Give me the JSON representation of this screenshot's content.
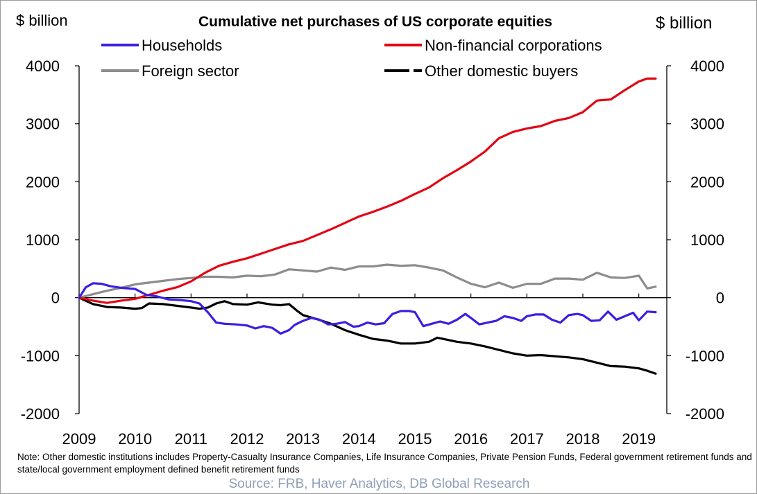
{
  "chart_data": {
    "type": "line",
    "title": "Cumulative net purchases of US corporate equities",
    "ylabel_left": "$ billion",
    "ylabel_right": "$ billion",
    "ylim": [
      -2000,
      4000
    ],
    "yticks": [
      4000,
      3000,
      2000,
      1000,
      0,
      -1000,
      -2000
    ],
    "xlim": [
      2009,
      2019.5
    ],
    "xticks": [
      "2009",
      "2010",
      "2011",
      "2012",
      "2013",
      "2014",
      "2015",
      "2016",
      "2017",
      "2018",
      "2019"
    ],
    "legend_position": "top",
    "grid": false,
    "series": [
      {
        "name": "Households",
        "color": "#3b1fe0",
        "style": "solid",
        "x": [
          2009.0,
          2009.12,
          2009.25,
          2009.4,
          2009.55,
          2009.75,
          2010.0,
          2010.2,
          2010.4,
          2010.6,
          2010.8,
          2011.0,
          2011.15,
          2011.3,
          2011.45,
          2011.6,
          2011.8,
          2012.0,
          2012.15,
          2012.3,
          2012.45,
          2012.6,
          2012.75,
          2012.85,
          2013.0,
          2013.15,
          2013.3,
          2013.45,
          2013.6,
          2013.75,
          2013.9,
          2014.0,
          2014.15,
          2014.3,
          2014.45,
          2014.6,
          2014.75,
          2014.9,
          2015.0,
          2015.15,
          2015.3,
          2015.45,
          2015.6,
          2015.75,
          2015.9,
          2016.0,
          2016.15,
          2016.3,
          2016.45,
          2016.6,
          2016.75,
          2016.9,
          2017.0,
          2017.15,
          2017.3,
          2017.45,
          2017.6,
          2017.75,
          2017.9,
          2018.0,
          2018.15,
          2018.3,
          2018.45,
          2018.6,
          2018.75,
          2018.9,
          2019.0,
          2019.15,
          2019.3
        ],
        "y": [
          0,
          180,
          250,
          240,
          200,
          170,
          150,
          50,
          20,
          -30,
          -40,
          -60,
          -100,
          -250,
          -430,
          -450,
          -460,
          -480,
          -530,
          -490,
          -520,
          -620,
          -560,
          -470,
          -400,
          -350,
          -380,
          -460,
          -450,
          -420,
          -500,
          -490,
          -430,
          -460,
          -440,
          -280,
          -230,
          -230,
          -250,
          -490,
          -450,
          -410,
          -450,
          -380,
          -280,
          -350,
          -460,
          -430,
          -400,
          -320,
          -350,
          -400,
          -320,
          -290,
          -290,
          -380,
          -430,
          -300,
          -280,
          -300,
          -400,
          -390,
          -240,
          -380,
          -320,
          -260,
          -390,
          -240,
          -250
        ]
      },
      {
        "name": "Non-financial corporations",
        "color": "#e30613",
        "style": "solid",
        "x": [
          2009.0,
          2009.25,
          2009.5,
          2009.75,
          2010.0,
          2010.25,
          2010.5,
          2010.75,
          2011.0,
          2011.25,
          2011.5,
          2011.75,
          2012.0,
          2012.25,
          2012.5,
          2012.75,
          2013.0,
          2013.25,
          2013.5,
          2013.75,
          2014.0,
          2014.25,
          2014.5,
          2014.75,
          2015.0,
          2015.25,
          2015.5,
          2015.75,
          2016.0,
          2016.25,
          2016.5,
          2016.75,
          2017.0,
          2017.25,
          2017.5,
          2017.75,
          2018.0,
          2018.25,
          2018.5,
          2018.75,
          2019.0,
          2019.15,
          2019.3
        ],
        "y": [
          0,
          -50,
          -90,
          -50,
          -20,
          50,
          120,
          180,
          280,
          430,
          550,
          620,
          680,
          760,
          840,
          920,
          980,
          1080,
          1180,
          1290,
          1400,
          1480,
          1570,
          1670,
          1790,
          1900,
          2060,
          2200,
          2350,
          2520,
          2750,
          2860,
          2920,
          2960,
          3050,
          3100,
          3200,
          3400,
          3420,
          3580,
          3730,
          3780,
          3780
        ]
      },
      {
        "name": "Foreign sector",
        "color": "#8c8c8c",
        "style": "solid",
        "x": [
          2009.0,
          2009.25,
          2009.5,
          2009.75,
          2010.0,
          2010.25,
          2010.5,
          2010.75,
          2011.0,
          2011.25,
          2011.5,
          2011.75,
          2012.0,
          2012.25,
          2012.5,
          2012.75,
          2013.0,
          2013.25,
          2013.5,
          2013.75,
          2014.0,
          2014.25,
          2014.5,
          2014.75,
          2015.0,
          2015.25,
          2015.5,
          2015.75,
          2016.0,
          2016.25,
          2016.5,
          2016.75,
          2017.0,
          2017.25,
          2017.5,
          2017.75,
          2018.0,
          2018.25,
          2018.5,
          2018.75,
          2019.0,
          2019.15,
          2019.3
        ],
        "y": [
          0,
          60,
          120,
          170,
          230,
          260,
          290,
          320,
          340,
          360,
          360,
          350,
          380,
          370,
          400,
          490,
          470,
          450,
          520,
          480,
          540,
          540,
          570,
          550,
          560,
          520,
          470,
          350,
          240,
          180,
          260,
          170,
          240,
          240,
          330,
          330,
          310,
          430,
          350,
          340,
          380,
          160,
          190
        ]
      },
      {
        "name": "Other domestic buyers",
        "color": "#000000",
        "style": "solid",
        "x": [
          2009.0,
          2009.25,
          2009.5,
          2009.75,
          2010.0,
          2010.12,
          2010.25,
          2010.5,
          2010.75,
          2011.0,
          2011.15,
          2011.3,
          2011.45,
          2011.6,
          2011.75,
          2012.0,
          2012.2,
          2012.45,
          2012.6,
          2012.75,
          2012.9,
          2013.0,
          2013.25,
          2013.5,
          2013.75,
          2014.0,
          2014.25,
          2014.5,
          2014.75,
          2015.0,
          2015.25,
          2015.4,
          2015.5,
          2015.75,
          2016.0,
          2016.25,
          2016.5,
          2016.75,
          2017.0,
          2017.25,
          2017.5,
          2017.75,
          2018.0,
          2018.25,
          2018.5,
          2018.75,
          2019.0,
          2019.15,
          2019.3
        ],
        "y": [
          0,
          -110,
          -160,
          -170,
          -190,
          -180,
          -100,
          -110,
          -140,
          -170,
          -190,
          -170,
          -100,
          -60,
          -110,
          -120,
          -80,
          -120,
          -130,
          -110,
          -230,
          -300,
          -370,
          -450,
          -560,
          -640,
          -710,
          -740,
          -790,
          -790,
          -760,
          -690,
          -710,
          -760,
          -790,
          -840,
          -900,
          -960,
          -1000,
          -990,
          -1010,
          -1030,
          -1060,
          -1120,
          -1180,
          -1190,
          -1220,
          -1260,
          -1310
        ]
      }
    ]
  },
  "note": "Note: Other domestic institutions includes Property-Casualty Insurance Companies, Life Insurance Companies, Private Pension Funds, Federal government retirement funds and state/local government employment defined benefit retirement funds",
  "source": "Source: FRB, Haver Analytics, DB Global Research"
}
